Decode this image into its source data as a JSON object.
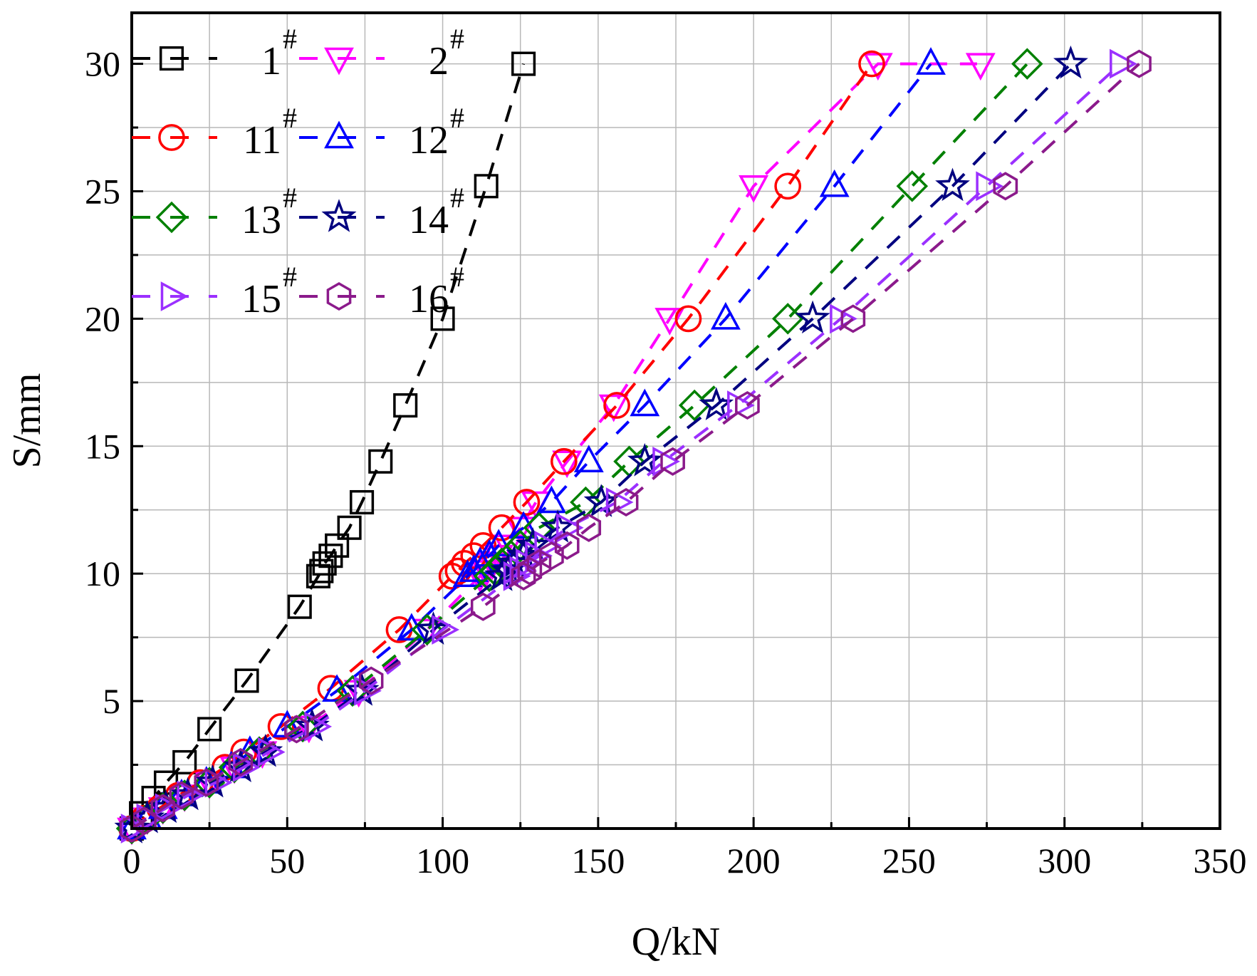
{
  "chart_data": {
    "type": "scatter",
    "title": "",
    "xlabel": "Q/kN",
    "ylabel": "S/mm",
    "xlim": [
      0,
      350
    ],
    "ylim": [
      0,
      32
    ],
    "xticks": [
      0,
      50,
      100,
      150,
      200,
      250,
      300,
      350
    ],
    "yticks": [
      5,
      10,
      15,
      20,
      25,
      30
    ],
    "grid": true,
    "legend_position": "top-left",
    "line_style": "dashed",
    "series": [
      {
        "name": "1",
        "sup": "#",
        "color": "#000000",
        "marker": "square",
        "x": [
          0,
          3,
          7,
          11,
          17,
          25,
          37,
          54,
          60,
          61,
          62,
          64,
          66,
          70,
          74,
          80,
          88,
          100,
          114,
          126
        ],
        "y": [
          0,
          0.6,
          1.2,
          1.8,
          2.6,
          3.9,
          5.8,
          8.7,
          9.9,
          10.1,
          10.4,
          10.7,
          11.1,
          11.8,
          12.8,
          14.4,
          16.6,
          20.0,
          25.2,
          30.0
        ]
      },
      {
        "name": "2",
        "sup": "#",
        "color": "#ff00ff",
        "marker": "triangle-down",
        "x": [
          0,
          5,
          10,
          17,
          25,
          33,
          42,
          57,
          73,
          95,
          112,
          114,
          116,
          118,
          121,
          125,
          130,
          140,
          155,
          173,
          200,
          240,
          273
        ],
        "y": [
          0,
          0.4,
          0.8,
          1.3,
          1.8,
          2.4,
          3.0,
          4.0,
          5.4,
          7.8,
          9.9,
          10.1,
          10.4,
          10.7,
          11.1,
          11.8,
          12.8,
          14.4,
          16.6,
          20.0,
          25.2,
          30.0,
          30.0
        ]
      },
      {
        "name": "11",
        "sup": "#",
        "color": "#ff0000",
        "marker": "circle",
        "x": [
          0,
          4,
          9,
          15,
          22,
          30,
          36,
          48,
          64,
          86,
          103,
          105,
          107,
          110,
          113,
          119,
          127,
          139,
          156,
          179,
          211,
          238
        ],
        "y": [
          0,
          0.4,
          0.8,
          1.3,
          1.8,
          2.4,
          3.0,
          4.0,
          5.5,
          7.8,
          9.9,
          10.1,
          10.4,
          10.7,
          11.1,
          11.8,
          12.8,
          14.4,
          16.6,
          20.0,
          25.2,
          30.0
        ]
      },
      {
        "name": "12",
        "sup": "#",
        "color": "#0000ff",
        "marker": "triangle-up",
        "x": [
          0,
          5,
          10,
          16,
          24,
          32,
          38,
          50,
          66,
          90,
          108,
          110,
          112,
          115,
          118,
          126,
          135,
          147,
          165,
          191,
          226,
          257
        ],
        "y": [
          0,
          0.4,
          0.8,
          1.3,
          1.8,
          2.4,
          3.0,
          4.0,
          5.4,
          7.8,
          9.9,
          10.1,
          10.4,
          10.7,
          11.1,
          11.8,
          12.8,
          14.4,
          16.6,
          20.0,
          25.2,
          30.0
        ]
      },
      {
        "name": "13",
        "sup": "#",
        "color": "#008000",
        "marker": "diamond",
        "x": [
          0,
          5,
          10,
          17,
          25,
          33,
          41,
          55,
          71,
          95,
          115,
          117,
          119,
          122,
          125,
          131,
          146,
          160,
          181,
          211,
          251,
          288
        ],
        "y": [
          0,
          0.4,
          0.8,
          1.3,
          1.8,
          2.4,
          3.0,
          4.0,
          5.4,
          7.8,
          9.9,
          10.1,
          10.4,
          10.7,
          11.1,
          11.8,
          12.8,
          14.4,
          16.6,
          20.0,
          25.2,
          30.0
        ]
      },
      {
        "name": "14",
        "sup": "#",
        "color": "#000080",
        "marker": "star",
        "x": [
          0,
          5,
          11,
          18,
          26,
          35,
          43,
          58,
          74,
          97,
          119,
          121,
          123,
          126,
          129,
          137,
          151,
          165,
          188,
          219,
          264,
          302
        ],
        "y": [
          0,
          0.4,
          0.8,
          1.3,
          1.8,
          2.4,
          3.0,
          4.0,
          5.4,
          7.8,
          9.9,
          10.1,
          10.4,
          10.7,
          11.1,
          11.8,
          12.8,
          14.4,
          16.6,
          20.0,
          25.2,
          30.0
        ]
      },
      {
        "name": "15",
        "sup": "#",
        "color": "#9b30ff",
        "marker": "triangle-right",
        "x": [
          0,
          5,
          11,
          18,
          27,
          36,
          44,
          59,
          75,
          100,
          123,
          125,
          127,
          130,
          133,
          140,
          156,
          171,
          195,
          228,
          275,
          318
        ],
        "y": [
          0,
          0.4,
          0.8,
          1.3,
          1.8,
          2.4,
          3.0,
          4.0,
          5.4,
          7.8,
          9.9,
          10.1,
          10.4,
          10.7,
          11.1,
          11.8,
          12.8,
          14.4,
          16.6,
          20.0,
          25.2,
          30.0
        ]
      },
      {
        "name": "16",
        "sup": "#",
        "color": "#8b1a8b",
        "marker": "hexagon",
        "x": [
          0,
          4,
          10,
          16,
          24,
          35,
          53,
          77,
          113,
          126,
          128,
          131,
          135,
          140,
          147,
          159,
          174,
          198,
          232,
          281,
          324
        ],
        "y": [
          0,
          0.3,
          0.8,
          1.3,
          1.8,
          2.6,
          3.9,
          5.8,
          8.7,
          9.9,
          10.1,
          10.4,
          10.7,
          11.1,
          11.8,
          12.8,
          14.4,
          16.6,
          20.0,
          25.2,
          30.0
        ]
      }
    ]
  }
}
